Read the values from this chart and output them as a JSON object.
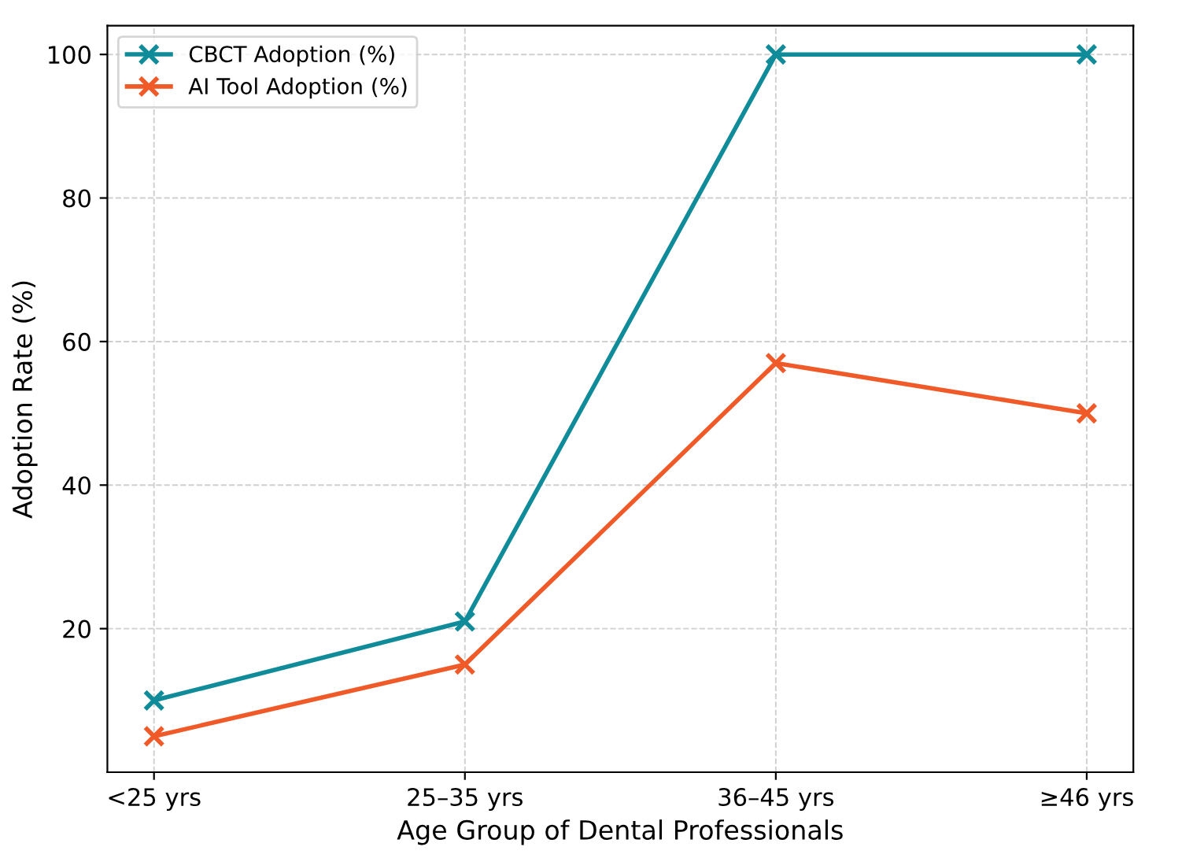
{
  "chart_data": {
    "type": "line",
    "xlabel": "Age Group of Dental Professionals",
    "ylabel": "Adoption Rate (%)",
    "categories": [
      "<25 yrs",
      "25–35 yrs",
      "36–45 yrs",
      "≥46 yrs"
    ],
    "series": [
      {
        "name": "CBCT Adoption (%)",
        "color": "#0f8b99",
        "values": [
          10,
          21,
          100,
          100
        ]
      },
      {
        "name": "AI Tool Adoption (%)",
        "color": "#f05a28",
        "values": [
          5,
          15,
          57,
          50
        ]
      }
    ],
    "ylim": [
      0,
      104
    ],
    "yticks": [
      20,
      40,
      60,
      80,
      100
    ],
    "grid": true,
    "legend": "top left",
    "marker": "cross",
    "line_style": "solid"
  }
}
